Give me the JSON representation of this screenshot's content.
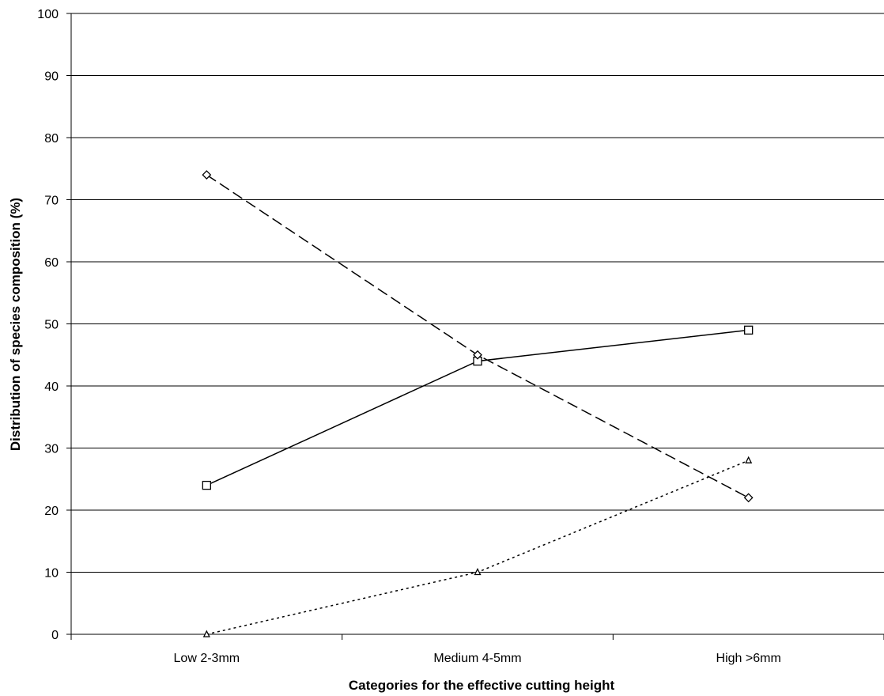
{
  "chart_data": {
    "type": "line",
    "title": "",
    "xlabel": "Categories for the effective cutting height",
    "ylabel": "Distribution of species composition (%)",
    "categories": [
      "Low 2-3mm",
      "Medium 4-5mm",
      "High >6mm"
    ],
    "ylim": [
      0,
      100
    ],
    "yticks": [
      0,
      10,
      20,
      30,
      40,
      50,
      60,
      70,
      80,
      90,
      100
    ],
    "grid": true,
    "legend": "none",
    "series": [
      {
        "values": [
          24,
          44,
          49
        ],
        "line_style": "solid",
        "marker": "square"
      },
      {
        "values": [
          74,
          45,
          22
        ],
        "line_style": "dashed",
        "marker": "diamond"
      },
      {
        "values": [
          0,
          10,
          28
        ],
        "line_style": "dotted",
        "marker": "triangle"
      }
    ]
  }
}
